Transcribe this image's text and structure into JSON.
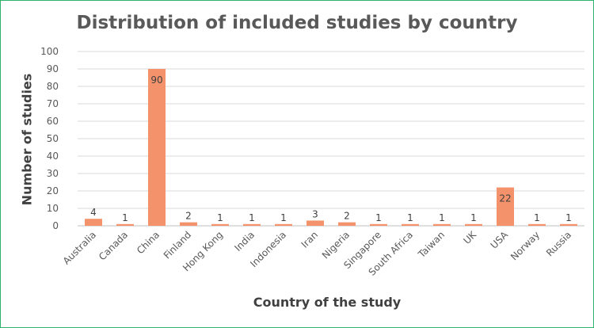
{
  "chart_data": {
    "type": "bar",
    "title": "Distribution of included studies by country",
    "xlabel": "Country of the study",
    "ylabel": "Number of studies",
    "categories": [
      "Australia",
      "Canada",
      "China",
      "Finland",
      "Hong Kong",
      "India",
      "Indonesia",
      "Iran",
      "Nigeria",
      "Singapore",
      "South Africa",
      "Taiwan",
      "UK",
      "USA",
      "Norway",
      "Russia"
    ],
    "values": [
      4,
      1,
      90,
      2,
      1,
      1,
      1,
      3,
      2,
      1,
      1,
      1,
      1,
      22,
      1,
      1
    ],
    "ylim": [
      0,
      100
    ],
    "yticks": [
      0,
      10,
      20,
      30,
      40,
      50,
      60,
      70,
      80,
      90,
      100
    ],
    "grid": true,
    "bar_color": "#f4926b",
    "frame_color": "#2fb36a"
  }
}
